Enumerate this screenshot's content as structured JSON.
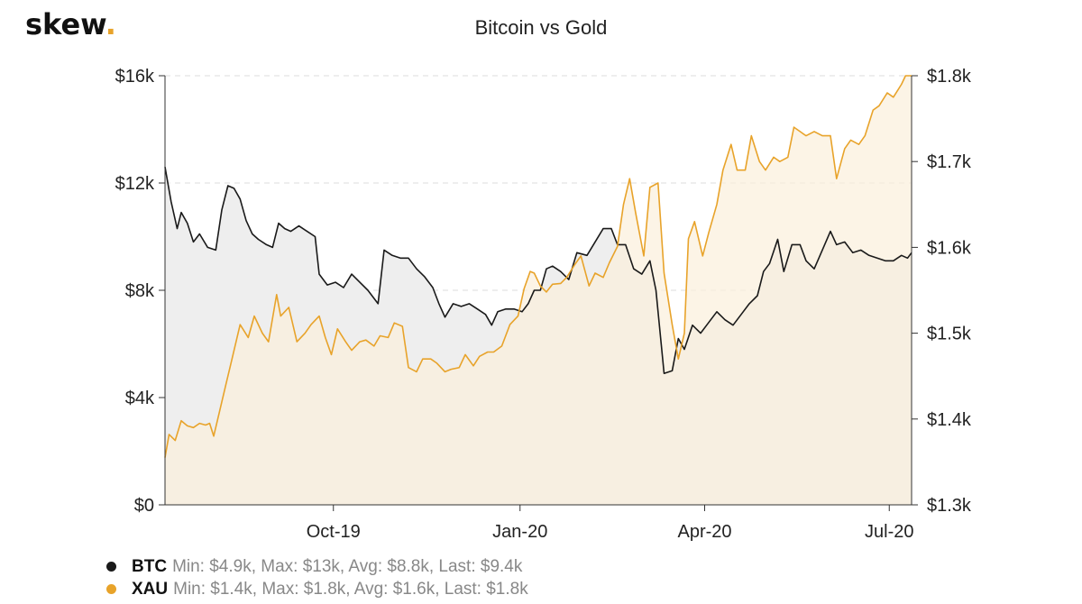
{
  "header": {
    "logo_text": "skew",
    "logo_dot": ".",
    "title": "Bitcoin vs Gold"
  },
  "colors": {
    "btc": "#1a1a1a",
    "xau": "#e8a32a",
    "btc_fill": "#eeeeee",
    "xau_fill": "#fbf0dc",
    "grid": "#dddddd",
    "axis": "#333333"
  },
  "legend": [
    {
      "name": "BTC",
      "stats": "Min: $4.9k, Max: $13k, Avg: $8.8k, Last: $9.4k",
      "color": "#1a1a1a"
    },
    {
      "name": "XAU",
      "stats": "Min: $1.4k, Max: $1.8k, Avg: $1.6k, Last: $1.8k",
      "color": "#e8a32a"
    }
  ],
  "chart_data": {
    "type": "area",
    "title": "Bitcoin vs Gold",
    "x_range": [
      "2019-07-10",
      "2020-07-12"
    ],
    "x_ticks": [
      {
        "label": "Oct-19",
        "date": "2019-10-01"
      },
      {
        "label": "Jan-20",
        "date": "2020-01-01"
      },
      {
        "label": "Apr-20",
        "date": "2020-04-01"
      },
      {
        "label": "Jul-20",
        "date": "2020-07-01"
      }
    ],
    "y_left": {
      "min": 0,
      "max": 16000,
      "ticks": [
        0,
        4000,
        8000,
        12000,
        16000
      ],
      "tick_labels": [
        "$0",
        "$4k",
        "$8k",
        "$12k",
        "$16k"
      ]
    },
    "y_right": {
      "min": 1300,
      "max": 1800,
      "ticks": [
        1300,
        1400,
        1500,
        1600,
        1700,
        1800
      ],
      "tick_labels": [
        "$1.3k",
        "$1.4k",
        "$1.5k",
        "$1.6k",
        "$1.7k",
        "$1.8k"
      ]
    },
    "grid": true,
    "legend_position": "bottom-left",
    "series": [
      {
        "name": "BTC",
        "axis": "left",
        "points": [
          [
            "2019-07-10",
            12600
          ],
          [
            "2019-07-13",
            11300
          ],
          [
            "2019-07-16",
            10300
          ],
          [
            "2019-07-18",
            10900
          ],
          [
            "2019-07-21",
            10500
          ],
          [
            "2019-07-24",
            9800
          ],
          [
            "2019-07-27",
            10100
          ],
          [
            "2019-07-31",
            9600
          ],
          [
            "2019-08-04",
            9500
          ],
          [
            "2019-08-07",
            11000
          ],
          [
            "2019-08-10",
            11900
          ],
          [
            "2019-08-13",
            11800
          ],
          [
            "2019-08-16",
            11400
          ],
          [
            "2019-08-19",
            10600
          ],
          [
            "2019-08-22",
            10100
          ],
          [
            "2019-08-25",
            9900
          ],
          [
            "2019-08-29",
            9700
          ],
          [
            "2019-09-01",
            9600
          ],
          [
            "2019-09-04",
            10500
          ],
          [
            "2019-09-07",
            10300
          ],
          [
            "2019-09-10",
            10200
          ],
          [
            "2019-09-14",
            10400
          ],
          [
            "2019-09-18",
            10200
          ],
          [
            "2019-09-22",
            10000
          ],
          [
            "2019-09-24",
            8600
          ],
          [
            "2019-09-28",
            8200
          ],
          [
            "2019-10-02",
            8300
          ],
          [
            "2019-10-06",
            8100
          ],
          [
            "2019-10-10",
            8600
          ],
          [
            "2019-10-14",
            8300
          ],
          [
            "2019-10-18",
            8000
          ],
          [
            "2019-10-23",
            7500
          ],
          [
            "2019-10-26",
            9500
          ],
          [
            "2019-10-30",
            9300
          ],
          [
            "2019-11-03",
            9200
          ],
          [
            "2019-11-07",
            9200
          ],
          [
            "2019-11-11",
            8800
          ],
          [
            "2019-11-15",
            8500
          ],
          [
            "2019-11-19",
            8100
          ],
          [
            "2019-11-22",
            7500
          ],
          [
            "2019-11-25",
            7000
          ],
          [
            "2019-11-29",
            7500
          ],
          [
            "2019-12-03",
            7400
          ],
          [
            "2019-12-07",
            7500
          ],
          [
            "2019-12-11",
            7300
          ],
          [
            "2019-12-15",
            7100
          ],
          [
            "2019-12-18",
            6700
          ],
          [
            "2019-12-21",
            7200
          ],
          [
            "2019-12-25",
            7300
          ],
          [
            "2019-12-29",
            7300
          ],
          [
            "2020-01-02",
            7200
          ],
          [
            "2020-01-05",
            7500
          ],
          [
            "2020-01-08",
            8000
          ],
          [
            "2020-01-11",
            8000
          ],
          [
            "2020-01-14",
            8800
          ],
          [
            "2020-01-17",
            8900
          ],
          [
            "2020-01-21",
            8700
          ],
          [
            "2020-01-25",
            8400
          ],
          [
            "2020-01-29",
            9400
          ],
          [
            "2020-02-03",
            9300
          ],
          [
            "2020-02-07",
            9800
          ],
          [
            "2020-02-11",
            10300
          ],
          [
            "2020-02-15",
            10300
          ],
          [
            "2020-02-18",
            9700
          ],
          [
            "2020-02-22",
            9700
          ],
          [
            "2020-02-26",
            8800
          ],
          [
            "2020-03-01",
            8600
          ],
          [
            "2020-03-05",
            9100
          ],
          [
            "2020-03-08",
            8000
          ],
          [
            "2020-03-12",
            4900
          ],
          [
            "2020-03-16",
            5000
          ],
          [
            "2020-03-19",
            6200
          ],
          [
            "2020-03-22",
            5800
          ],
          [
            "2020-03-26",
            6700
          ],
          [
            "2020-03-30",
            6400
          ],
          [
            "2020-04-03",
            6800
          ],
          [
            "2020-04-07",
            7200
          ],
          [
            "2020-04-11",
            6900
          ],
          [
            "2020-04-15",
            6700
          ],
          [
            "2020-04-19",
            7100
          ],
          [
            "2020-04-23",
            7500
          ],
          [
            "2020-04-27",
            7800
          ],
          [
            "2020-04-30",
            8700
          ],
          [
            "2020-05-03",
            9000
          ],
          [
            "2020-05-07",
            9900
          ],
          [
            "2020-05-10",
            8700
          ],
          [
            "2020-05-14",
            9700
          ],
          [
            "2020-05-18",
            9700
          ],
          [
            "2020-05-21",
            9100
          ],
          [
            "2020-05-25",
            8800
          ],
          [
            "2020-05-29",
            9500
          ],
          [
            "2020-06-02",
            10200
          ],
          [
            "2020-06-05",
            9700
          ],
          [
            "2020-06-09",
            9800
          ],
          [
            "2020-06-13",
            9400
          ],
          [
            "2020-06-17",
            9500
          ],
          [
            "2020-06-21",
            9300
          ],
          [
            "2020-06-25",
            9200
          ],
          [
            "2020-06-29",
            9100
          ],
          [
            "2020-07-03",
            9100
          ],
          [
            "2020-07-07",
            9300
          ],
          [
            "2020-07-10",
            9200
          ],
          [
            "2020-07-12",
            9400
          ]
        ]
      },
      {
        "name": "XAU",
        "axis": "right",
        "points": [
          [
            "2019-07-10",
            1355
          ],
          [
            "2019-07-12",
            1382
          ],
          [
            "2019-07-15",
            1375
          ],
          [
            "2019-07-18",
            1398
          ],
          [
            "2019-07-21",
            1392
          ],
          [
            "2019-07-24",
            1390
          ],
          [
            "2019-07-27",
            1395
          ],
          [
            "2019-07-30",
            1393
          ],
          [
            "2019-08-01",
            1395
          ],
          [
            "2019-08-03",
            1380
          ],
          [
            "2019-08-05",
            1400
          ],
          [
            "2019-08-09",
            1440
          ],
          [
            "2019-08-12",
            1470
          ],
          [
            "2019-08-16",
            1510
          ],
          [
            "2019-08-20",
            1495
          ],
          [
            "2019-08-23",
            1520
          ],
          [
            "2019-08-27",
            1500
          ],
          [
            "2019-08-30",
            1490
          ],
          [
            "2019-09-03",
            1545
          ],
          [
            "2019-09-05",
            1520
          ],
          [
            "2019-09-09",
            1530
          ],
          [
            "2019-09-13",
            1490
          ],
          [
            "2019-09-17",
            1500
          ],
          [
            "2019-09-20",
            1510
          ],
          [
            "2019-09-24",
            1520
          ],
          [
            "2019-09-27",
            1495
          ],
          [
            "2019-09-30",
            1475
          ],
          [
            "2019-10-03",
            1505
          ],
          [
            "2019-10-07",
            1490
          ],
          [
            "2019-10-10",
            1480
          ],
          [
            "2019-10-14",
            1490
          ],
          [
            "2019-10-17",
            1492
          ],
          [
            "2019-10-21",
            1485
          ],
          [
            "2019-10-24",
            1497
          ],
          [
            "2019-10-28",
            1495
          ],
          [
            "2019-10-31",
            1512
          ],
          [
            "2019-11-04",
            1508
          ],
          [
            "2019-11-07",
            1460
          ],
          [
            "2019-11-11",
            1455
          ],
          [
            "2019-11-14",
            1470
          ],
          [
            "2019-11-18",
            1470
          ],
          [
            "2019-11-21",
            1465
          ],
          [
            "2019-11-25",
            1455
          ],
          [
            "2019-11-28",
            1458
          ],
          [
            "2019-12-02",
            1460
          ],
          [
            "2019-12-05",
            1475
          ],
          [
            "2019-12-09",
            1462
          ],
          [
            "2019-12-12",
            1473
          ],
          [
            "2019-12-16",
            1478
          ],
          [
            "2019-12-19",
            1478
          ],
          [
            "2019-12-23",
            1485
          ],
          [
            "2019-12-27",
            1510
          ],
          [
            "2019-12-31",
            1520
          ],
          [
            "2020-01-03",
            1552
          ],
          [
            "2020-01-06",
            1572
          ],
          [
            "2020-01-08",
            1570
          ],
          [
            "2020-01-11",
            1555
          ],
          [
            "2020-01-14",
            1548
          ],
          [
            "2020-01-17",
            1557
          ],
          [
            "2020-01-21",
            1558
          ],
          [
            "2020-01-24",
            1565
          ],
          [
            "2020-01-28",
            1580
          ],
          [
            "2020-01-31",
            1590
          ],
          [
            "2020-02-04",
            1555
          ],
          [
            "2020-02-07",
            1570
          ],
          [
            "2020-02-11",
            1565
          ],
          [
            "2020-02-14",
            1582
          ],
          [
            "2020-02-18",
            1601
          ],
          [
            "2020-02-21",
            1650
          ],
          [
            "2020-02-24",
            1680
          ],
          [
            "2020-02-27",
            1640
          ],
          [
            "2020-03-02",
            1590
          ],
          [
            "2020-03-05",
            1670
          ],
          [
            "2020-03-09",
            1675
          ],
          [
            "2020-03-12",
            1570
          ],
          [
            "2020-03-16",
            1510
          ],
          [
            "2020-03-19",
            1470
          ],
          [
            "2020-03-22",
            1500
          ],
          [
            "2020-03-24",
            1610
          ],
          [
            "2020-03-27",
            1630
          ],
          [
            "2020-03-31",
            1590
          ],
          [
            "2020-04-03",
            1617
          ],
          [
            "2020-04-07",
            1650
          ],
          [
            "2020-04-10",
            1690
          ],
          [
            "2020-04-14",
            1720
          ],
          [
            "2020-04-17",
            1690
          ],
          [
            "2020-04-21",
            1690
          ],
          [
            "2020-04-24",
            1730
          ],
          [
            "2020-04-28",
            1700
          ],
          [
            "2020-05-01",
            1690
          ],
          [
            "2020-05-05",
            1705
          ],
          [
            "2020-05-08",
            1700
          ],
          [
            "2020-05-12",
            1705
          ],
          [
            "2020-05-15",
            1740
          ],
          [
            "2020-05-18",
            1735
          ],
          [
            "2020-05-21",
            1730
          ],
          [
            "2020-05-25",
            1735
          ],
          [
            "2020-05-29",
            1730
          ],
          [
            "2020-06-02",
            1730
          ],
          [
            "2020-06-05",
            1680
          ],
          [
            "2020-06-09",
            1715
          ],
          [
            "2020-06-12",
            1725
          ],
          [
            "2020-06-16",
            1720
          ],
          [
            "2020-06-19",
            1730
          ],
          [
            "2020-06-23",
            1760
          ],
          [
            "2020-06-26",
            1765
          ],
          [
            "2020-06-30",
            1780
          ],
          [
            "2020-07-03",
            1775
          ],
          [
            "2020-07-07",
            1790
          ],
          [
            "2020-07-09",
            1800
          ],
          [
            "2020-07-12",
            1800
          ]
        ]
      }
    ]
  }
}
